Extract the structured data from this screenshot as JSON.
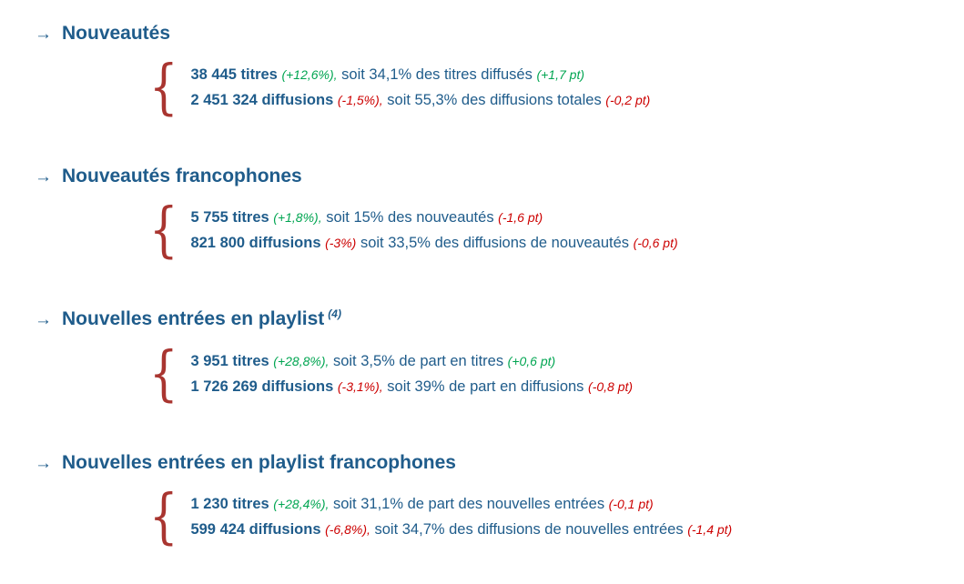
{
  "page": {
    "arrow": "→",
    "brace_glyph": "{",
    "colors": {
      "heading": "#1F5C8B",
      "body": "#1F5C8B",
      "positive": "#00A551",
      "negative": "#CC0000",
      "brace": "#A93530",
      "bg": "#FFFFFF"
    }
  },
  "sections": [
    {
      "title": "Nouveautés",
      "superscript": "",
      "lines": [
        {
          "value": "38 445 titres",
          "change_pct": "(+12,6%),",
          "change_pct_color": "positive",
          "text": "soit 34,1% des titres diffusés",
          "change_pt": "(+1,7 pt)",
          "change_pt_color": "positive"
        },
        {
          "value": "2 451 324 diffusions",
          "change_pct": "(-1,5%),",
          "change_pct_color": "negative",
          "text": "soit 55,3% des diffusions totales",
          "change_pt": "(-0,2 pt)",
          "change_pt_color": "negative"
        }
      ]
    },
    {
      "title": "Nouveautés francophones",
      "superscript": "",
      "lines": [
        {
          "value": "5 755 titres",
          "change_pct": "(+1,8%),",
          "change_pct_color": "positive",
          "text": "soit 15% des nouveautés",
          "change_pt": "(-1,6 pt)",
          "change_pt_color": "negative"
        },
        {
          "value": "821 800 diffusions",
          "change_pct": "(-3%)",
          "change_pct_color": "negative",
          "text": "soit 33,5% des diffusions de nouveautés",
          "change_pt": "(-0,6 pt)",
          "change_pt_color": "negative"
        }
      ]
    },
    {
      "title": "Nouvelles entrées en playlist",
      "superscript": "(4)",
      "lines": [
        {
          "value": "3 951 titres",
          "change_pct": "(+28,8%),",
          "change_pct_color": "positive",
          "text": "soit 3,5% de part en titres",
          "change_pt": "(+0,6 pt)",
          "change_pt_color": "positive"
        },
        {
          "value": "1 726 269 diffusions",
          "change_pct": "(-3,1%),",
          "change_pct_color": "negative",
          "text": "soit 39% de part en diffusions",
          "change_pt": "(-0,8 pt)",
          "change_pt_color": "negative"
        }
      ]
    },
    {
      "title": "Nouvelles entrées en playlist francophones",
      "superscript": "",
      "lines": [
        {
          "value": "1 230 titres",
          "change_pct": "(+28,4%),",
          "change_pct_color": "positive",
          "text": "soit 31,1% de part des nouvelles entrées",
          "change_pt": "(-0,1 pt)",
          "change_pt_color": "negative"
        },
        {
          "value": "599 424 diffusions",
          "change_pct": "(-6,8%),",
          "change_pct_color": "negative",
          "text": "soit 34,7% des diffusions de nouvelles entrées",
          "change_pt": "(-1,4 pt)",
          "change_pt_color": "negative"
        }
      ]
    }
  ]
}
